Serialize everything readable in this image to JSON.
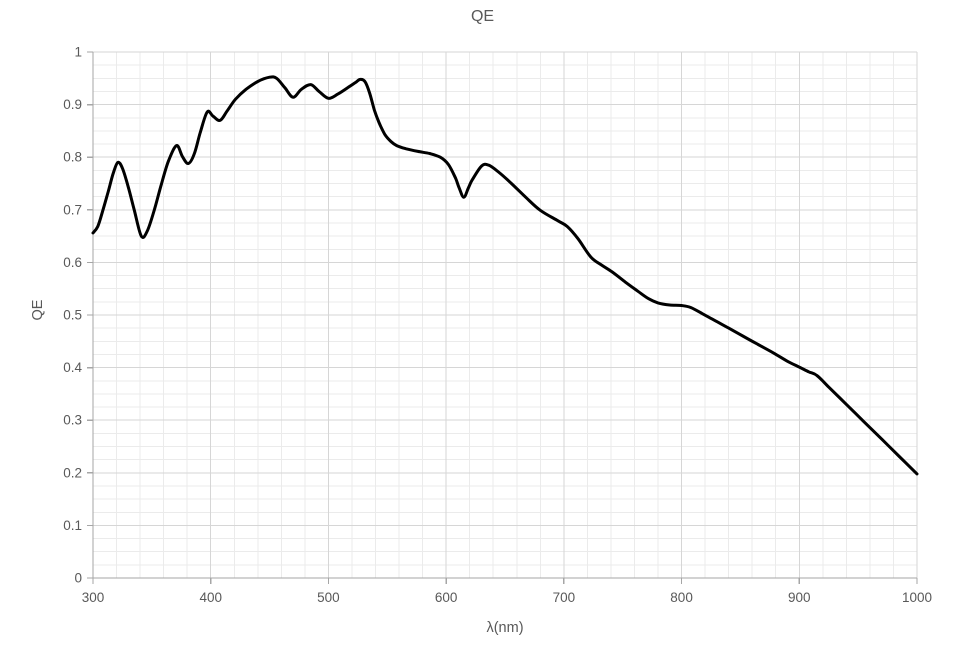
{
  "page": {
    "background": "#ffffff"
  },
  "chart_data": {
    "type": "line",
    "title": "QE",
    "xlabel": "λ(nm)",
    "ylabel": "QE",
    "xlim": [
      300,
      1000
    ],
    "ylim": [
      0,
      1
    ],
    "x_major_unit": 100,
    "x_minor_unit": 20,
    "y_major_unit": 0.1,
    "y_minor_unit": 0.025,
    "grid": "major and minor gridlines on both axes",
    "legend_position": "none",
    "x_ticks": [
      "300",
      "400",
      "500",
      "600",
      "700",
      "800",
      "900",
      "1000"
    ],
    "y_ticks": [
      "0",
      "0.1",
      "0.2",
      "0.3",
      "0.4",
      "0.5",
      "0.6",
      "0.7",
      "0.8",
      "0.9",
      "1"
    ],
    "colors": {
      "line": "#000000",
      "grid_major": "#d6d6d6",
      "grid_minor": "#ebebeb",
      "axis": "#a6a6a6",
      "text": "#595959",
      "background": "#ffffff"
    },
    "series": [
      {
        "name": "QE",
        "color": "#000000",
        "width": 3,
        "smooth": true,
        "points": [
          [
            300,
            0.656
          ],
          [
            304,
            0.668
          ],
          [
            308,
            0.696
          ],
          [
            313,
            0.735
          ],
          [
            317,
            0.768
          ],
          [
            321,
            0.79
          ],
          [
            325,
            0.779
          ],
          [
            330,
            0.743
          ],
          [
            335,
            0.7
          ],
          [
            341,
            0.65
          ],
          [
            346,
            0.659
          ],
          [
            352,
            0.699
          ],
          [
            358,
            0.748
          ],
          [
            364,
            0.792
          ],
          [
            371,
            0.822
          ],
          [
            376,
            0.801
          ],
          [
            381,
            0.788
          ],
          [
            386,
            0.806
          ],
          [
            391,
            0.846
          ],
          [
            397,
            0.886
          ],
          [
            402,
            0.878
          ],
          [
            408,
            0.87
          ],
          [
            414,
            0.888
          ],
          [
            421,
            0.91
          ],
          [
            430,
            0.929
          ],
          [
            440,
            0.944
          ],
          [
            450,
            0.952
          ],
          [
            456,
            0.95
          ],
          [
            463,
            0.932
          ],
          [
            470,
            0.914
          ],
          [
            477,
            0.929
          ],
          [
            485,
            0.938
          ],
          [
            492,
            0.925
          ],
          [
            500,
            0.912
          ],
          [
            508,
            0.92
          ],
          [
            517,
            0.933
          ],
          [
            523,
            0.942
          ],
          [
            527,
            0.948
          ],
          [
            531,
            0.944
          ],
          [
            535,
            0.922
          ],
          [
            539,
            0.89
          ],
          [
            543,
            0.866
          ],
          [
            548,
            0.843
          ],
          [
            553,
            0.83
          ],
          [
            558,
            0.822
          ],
          [
            566,
            0.816
          ],
          [
            576,
            0.811
          ],
          [
            586,
            0.807
          ],
          [
            595,
            0.8
          ],
          [
            602,
            0.786
          ],
          [
            608,
            0.76
          ],
          [
            611,
            0.742
          ],
          [
            615,
            0.724
          ],
          [
            619,
            0.742
          ],
          [
            622,
            0.756
          ],
          [
            630,
            0.783
          ],
          [
            636,
            0.785
          ],
          [
            645,
            0.771
          ],
          [
            655,
            0.751
          ],
          [
            668,
            0.723
          ],
          [
            680,
            0.699
          ],
          [
            695,
            0.679
          ],
          [
            703,
            0.668
          ],
          [
            712,
            0.645
          ],
          [
            723,
            0.61
          ],
          [
            732,
            0.595
          ],
          [
            741,
            0.582
          ],
          [
            752,
            0.563
          ],
          [
            763,
            0.545
          ],
          [
            772,
            0.531
          ],
          [
            780,
            0.523
          ],
          [
            790,
            0.519
          ],
          [
            800,
            0.518
          ],
          [
            808,
            0.514
          ],
          [
            818,
            0.502
          ],
          [
            828,
            0.49
          ],
          [
            840,
            0.475
          ],
          [
            852,
            0.46
          ],
          [
            865,
            0.444
          ],
          [
            878,
            0.428
          ],
          [
            890,
            0.412
          ],
          [
            900,
            0.401
          ],
          [
            908,
            0.392
          ],
          [
            915,
            0.385
          ],
          [
            925,
            0.363
          ],
          [
            940,
            0.33
          ],
          [
            955,
            0.297
          ],
          [
            970,
            0.264
          ],
          [
            985,
            0.231
          ],
          [
            1000,
            0.198
          ]
        ]
      }
    ]
  }
}
